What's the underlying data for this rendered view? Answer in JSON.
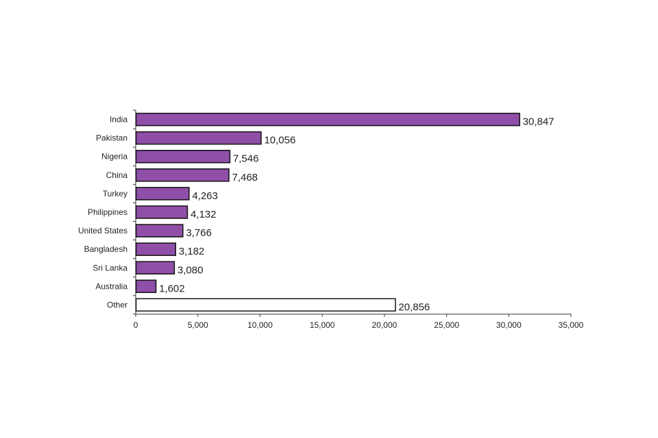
{
  "chart_data": {
    "type": "bar",
    "orientation": "horizontal",
    "title": "",
    "xlabel": "",
    "ylabel": "",
    "categories": [
      "India",
      "Pakistan",
      "Nigeria",
      "China",
      "Turkey",
      "Philippines",
      "United States",
      "Bangladesh",
      "Sri Lanka",
      "Australia",
      "Other"
    ],
    "values": [
      30847,
      10056,
      7546,
      7468,
      4263,
      4132,
      3766,
      3182,
      3080,
      1602,
      20856
    ],
    "value_labels": [
      "30,847",
      "10,056",
      "7,546",
      "7,468",
      "4,263",
      "4,132",
      "3,766",
      "3,182",
      "3,080",
      "1,602",
      "20,856"
    ],
    "xlim": [
      0,
      35000
    ],
    "xticks": [
      0,
      5000,
      10000,
      15000,
      20000,
      25000,
      30000,
      35000
    ],
    "xtick_labels": [
      "0",
      "5,000",
      "10,000",
      "15,000",
      "20,000",
      "25,000",
      "30,000",
      "35,000"
    ],
    "grid": false,
    "colors": {
      "bar": "#8f4fa8",
      "other_bar": "#ffffff",
      "outline": "#111111"
    }
  }
}
